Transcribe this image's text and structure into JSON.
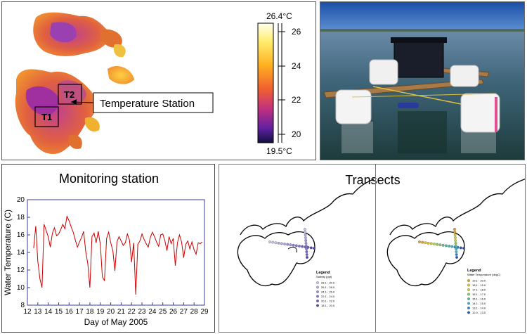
{
  "thermal": {
    "scale_max_label": "26.4°C",
    "scale_min_label": "19.5°C",
    "scale_ticks": [
      "26",
      "24",
      "22",
      "20"
    ],
    "t1_label": "T1",
    "t2_label": "T2",
    "station_callout": "Temperature Station"
  },
  "station_photo": {
    "description_icon": "floating-platform-photo"
  },
  "monitoring": {
    "title": "Monitoring station",
    "chart_data": {
      "type": "line",
      "title": "Monitoring station",
      "xlabel": "Day of May 2005",
      "ylabel": "Water Temperature (C)",
      "xlim": [
        12,
        29
      ],
      "ylim": [
        8,
        20
      ],
      "x_ticks": [
        "12",
        "13",
        "14",
        "15",
        "16",
        "17",
        "18",
        "19",
        "20",
        "21",
        "22",
        "23",
        "24",
        "25",
        "26",
        "27",
        "28",
        "29"
      ],
      "y_ticks": [
        "8",
        "10",
        "12",
        "14",
        "16",
        "18",
        "20"
      ],
      "series": [
        {
          "color": "#cc0000",
          "x": [
            12.6,
            12.8,
            13.0,
            13.2,
            13.4,
            13.6,
            13.8,
            14.0,
            14.2,
            14.4,
            14.6,
            14.8,
            15.0,
            15.2,
            15.4,
            15.6,
            15.8,
            16.0,
            16.2,
            16.4,
            16.6,
            16.8,
            17.0,
            17.2,
            17.4,
            17.6,
            17.8,
            18.0,
            18.2,
            18.4,
            18.6,
            18.8,
            19.0,
            19.2,
            19.4,
            19.6,
            19.8,
            20.0,
            20.2,
            20.4,
            20.6,
            20.8,
            21.0,
            21.2,
            21.4,
            21.6,
            21.8,
            22.0,
            22.2,
            22.4,
            22.6,
            22.8,
            23.0,
            23.2,
            23.4,
            23.6,
            23.8,
            24.0,
            24.2,
            24.4,
            24.6,
            24.8,
            25.0,
            25.2,
            25.4,
            25.6,
            25.8,
            26.0,
            26.2,
            26.4,
            26.6,
            26.8,
            27.0,
            27.2,
            27.4,
            27.6,
            27.8,
            28.0,
            28.2,
            28.4,
            28.6,
            28.8
          ],
          "values": [
            14.5,
            17.0,
            13.0,
            11.0,
            10.0,
            17.2,
            16.5,
            15.8,
            14.6,
            16.2,
            16.8,
            15.9,
            16.1,
            16.6,
            17.2,
            16.7,
            18.1,
            17.6,
            16.9,
            16.3,
            15.4,
            14.6,
            15.2,
            15.7,
            16.4,
            14.1,
            12.7,
            10.0,
            15.8,
            16.2,
            15.1,
            16.4,
            14.9,
            11.2,
            10.8,
            15.6,
            16.3,
            15.1,
            14.2,
            11.9,
            15.2,
            15.8,
            15.3,
            14.8,
            15.1,
            16.1,
            15.4,
            12.9,
            15.1,
            9.2,
            14.9,
            15.3,
            16.1,
            15.5,
            15.0,
            14.6,
            15.7,
            16.3,
            15.8,
            15.2,
            14.7,
            16.0,
            16.1,
            15.3,
            14.2,
            15.8,
            15.0,
            15.6,
            12.5,
            15.1,
            16.0,
            15.2,
            13.4,
            14.9,
            15.3,
            14.4,
            15.2,
            14.3,
            13.8,
            15.1,
            15.0,
            15.2
          ]
        }
      ]
    }
  },
  "transects": {
    "title": "Transects",
    "map_left": {
      "legend_title": "Legend",
      "legend_subtitle": "Salinity (ppt)",
      "legend_items": [
        {
          "label": "28.1 - 30.0",
          "color": "#c7c3e8"
        },
        {
          "label": "26.1 - 28.0",
          "color": "#b0a9df"
        },
        {
          "label": "24.1 - 26.0",
          "color": "#9a90d6"
        },
        {
          "label": "22.1 - 24.0",
          "color": "#8377cc"
        },
        {
          "label": "20.1 - 22.0",
          "color": "#6c5dc2"
        },
        {
          "label": "18.1 - 20.0",
          "color": "#5040b0"
        }
      ]
    },
    "map_right": {
      "legend_title": "Legend",
      "legend_subtitle": "Water Temperature (degC)",
      "legend_items": [
        {
          "label": "19.1 - 20.0",
          "color": "#e0a030"
        },
        {
          "label": "18.1 - 19.0",
          "color": "#d9c040"
        },
        {
          "label": "17.1 - 18.0",
          "color": "#c8d040"
        },
        {
          "label": "16.1 - 17.0",
          "color": "#90c850"
        },
        {
          "label": "15.1 - 16.0",
          "color": "#50c090"
        },
        {
          "label": "14.1 - 15.0",
          "color": "#40b0c0"
        },
        {
          "label": "13.1 - 14.0",
          "color": "#3080c8"
        },
        {
          "label": "12.0 - 13.0",
          "color": "#3050b0"
        }
      ]
    }
  }
}
